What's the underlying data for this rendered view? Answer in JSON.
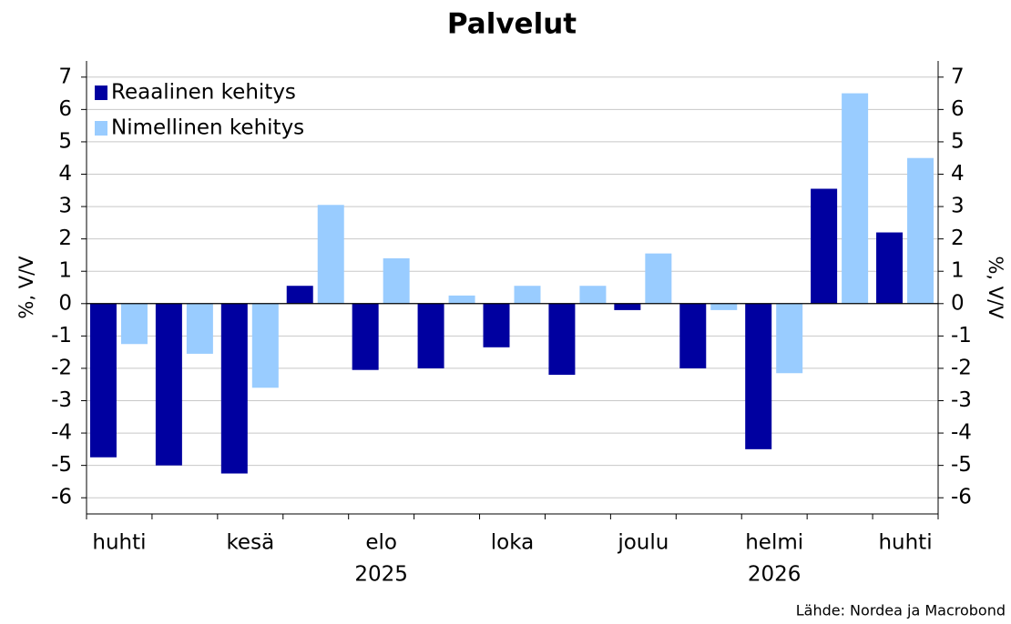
{
  "chart_data": {
    "type": "bar",
    "title": "Palvelut",
    "y_label": "%, V/V",
    "y2_label": "%, V/V",
    "source": "Lähde: Nordea ja Macrobond",
    "categories": [
      "huhti",
      null,
      "kesä",
      null,
      "elo",
      null,
      "loka",
      null,
      "joulu",
      null,
      "helmi",
      null,
      "huhti"
    ],
    "year_labels": [
      {
        "label": "2025",
        "category": 4
      },
      {
        "label": "2026",
        "category": 10
      }
    ],
    "series": [
      {
        "name": "Reaalinen kehitys",
        "color": "#0000a0",
        "values": [
          -4.75,
          -5.0,
          -5.25,
          0.55,
          -2.05,
          -2.0,
          -1.35,
          -2.2,
          -0.2,
          -2.0,
          -4.5,
          3.55,
          2.2
        ]
      },
      {
        "name": "Nimellinen kehitys",
        "color": "#99ccff",
        "values": [
          -1.25,
          -1.55,
          -2.6,
          3.05,
          1.4,
          0.25,
          0.55,
          0.55,
          1.55,
          -0.2,
          -2.15,
          6.5,
          4.5
        ]
      }
    ],
    "ylim": [
      -6.5,
      7.5
    ],
    "yticks": [
      -6,
      -5,
      -4,
      -3,
      -2,
      -1,
      0,
      1,
      2,
      3,
      4,
      5,
      6,
      7
    ],
    "y2lim": [
      -6.5,
      7.5
    ],
    "y2ticks": [
      -6,
      -5,
      -4,
      -3,
      -2,
      -1,
      0,
      1,
      2,
      3,
      4,
      5,
      6,
      7
    ],
    "grid": true,
    "legend": "upper left"
  }
}
